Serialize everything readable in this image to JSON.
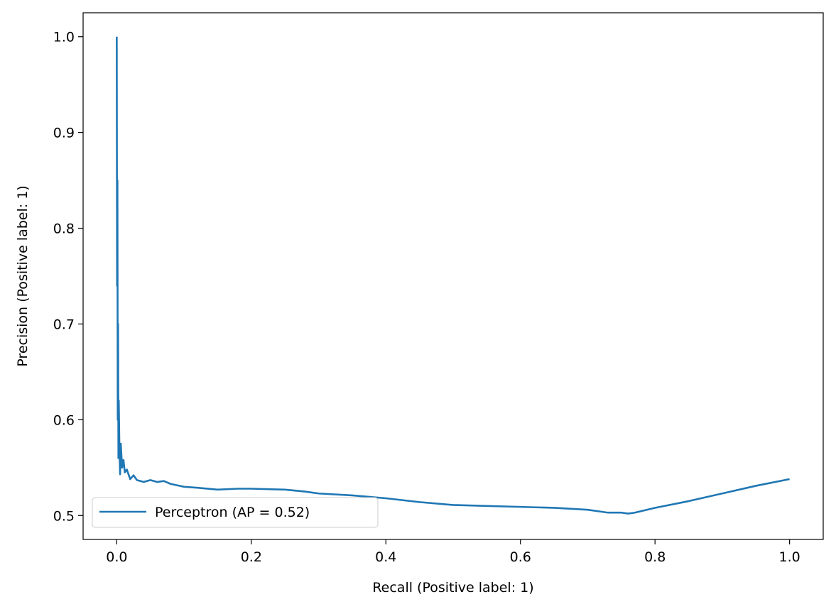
{
  "chart_data": {
    "type": "line",
    "title": "",
    "xlabel": "Recall (Positive label: 1)",
    "ylabel": "Precision (Positive label: 1)",
    "xlim": [
      -0.05,
      1.05
    ],
    "ylim": [
      0.475,
      1.025
    ],
    "xticks": [
      0.0,
      0.2,
      0.4,
      0.6,
      0.8,
      1.0
    ],
    "xtick_labels": [
      "0.0",
      "0.2",
      "0.4",
      "0.6",
      "0.8",
      "1.0"
    ],
    "yticks": [
      0.5,
      0.6,
      0.7,
      0.8,
      0.9,
      1.0
    ],
    "ytick_labels": [
      "0.5",
      "0.6",
      "0.7",
      "0.8",
      "0.9",
      "1.0"
    ],
    "grid": false,
    "legend_position": "bottom-left",
    "series": [
      {
        "name": "Perceptron (AP = 0.52)",
        "color": "#1f77b4",
        "x": [
          0.0,
          0.0005,
          0.001,
          0.0015,
          0.002,
          0.0025,
          0.003,
          0.004,
          0.005,
          0.006,
          0.008,
          0.01,
          0.012,
          0.015,
          0.02,
          0.025,
          0.03,
          0.04,
          0.05,
          0.06,
          0.07,
          0.08,
          0.1,
          0.12,
          0.15,
          0.18,
          0.2,
          0.25,
          0.28,
          0.3,
          0.35,
          0.4,
          0.45,
          0.5,
          0.55,
          0.6,
          0.65,
          0.7,
          0.72,
          0.73,
          0.75,
          0.76,
          0.77,
          0.8,
          0.85,
          0.9,
          0.95,
          1.0
        ],
        "y": [
          1.0,
          0.74,
          0.85,
          0.6,
          0.7,
          0.56,
          0.62,
          0.57,
          0.543,
          0.575,
          0.55,
          0.558,
          0.545,
          0.548,
          0.538,
          0.542,
          0.537,
          0.535,
          0.537,
          0.535,
          0.536,
          0.533,
          0.53,
          0.529,
          0.527,
          0.528,
          0.528,
          0.527,
          0.525,
          0.523,
          0.521,
          0.518,
          0.514,
          0.511,
          0.51,
          0.509,
          0.508,
          0.506,
          0.504,
          0.503,
          0.503,
          0.502,
          0.503,
          0.508,
          0.515,
          0.523,
          0.531,
          0.538
        ]
      }
    ]
  }
}
